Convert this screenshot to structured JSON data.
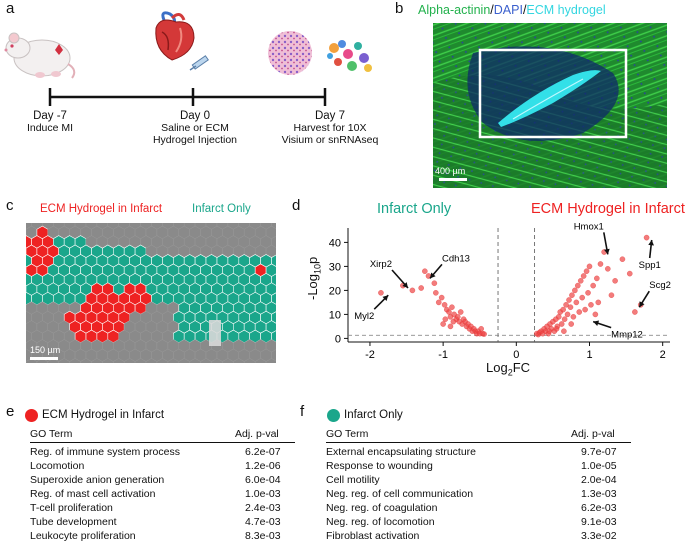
{
  "panel_a": {
    "label": "a",
    "timeline": [
      {
        "day": "Day -7",
        "desc": "Induce MI"
      },
      {
        "day": "Day 0",
        "desc": "Saline or ECM Hydrogel Injection"
      },
      {
        "day": "Day 7",
        "desc": "Harvest for 10X Visium or snRNAseq"
      }
    ]
  },
  "panel_b": {
    "label": "b",
    "title_parts": [
      {
        "text": "Alpha-actinin",
        "color": "#22b14c"
      },
      {
        "text": "/",
        "color": "#111111"
      },
      {
        "text": "DAPI",
        "color": "#3a5fcd"
      },
      {
        "text": "/",
        "color": "#111111"
      },
      {
        "text": "ECM hydrogel",
        "color": "#33d6e0"
      }
    ],
    "scale": "400 µm"
  },
  "panel_c": {
    "label": "c",
    "legend_left": "ECM Hydrogel in Infarct",
    "legend_right": "Infarct Only",
    "scale": "150 µm",
    "colors": {
      "red": "#ee2222",
      "teal": "#1aa68b",
      "gray": "#8a8a8a"
    }
  },
  "panel_d": {
    "label": "d",
    "left_title": "Infarct Only",
    "right_title": "ECM Hydrogel in Infarct",
    "xlabel_base": "Log",
    "xlabel_sub": "2",
    "xlabel_tail": "FC",
    "ylabel_pre": "-Log",
    "ylabel_sub": "10",
    "ylabel_tail": "p",
    "chart_data": {
      "type": "scatter",
      "title": "",
      "x_ticks": [
        "-2",
        "-1",
        "0",
        "1",
        "2"
      ],
      "y_ticks": [
        "0",
        "10",
        "20",
        "30",
        "40"
      ],
      "xlim": [
        -2.3,
        2.1
      ],
      "ylim": [
        -1.5,
        46
      ],
      "thresholds": {
        "x": [
          -0.25,
          0.25
        ],
        "y": 1.3
      },
      "annotations": [
        {
          "gene": "Xirp2",
          "x": -1.48,
          "y": 21
        },
        {
          "gene": "Cdh13",
          "x": -1.18,
          "y": 25
        },
        {
          "gene": "Myl2",
          "x": -1.75,
          "y": 18
        },
        {
          "gene": "Hmox1",
          "x": 1.25,
          "y": 35
        },
        {
          "gene": "Spp1",
          "x": 1.85,
          "y": 41
        },
        {
          "gene": "Scg2",
          "x": 1.68,
          "y": 13
        },
        {
          "gene": "Mmp12",
          "x": 1.05,
          "y": 7
        }
      ],
      "points": [
        [
          -1.85,
          19
        ],
        [
          -1.55,
          22
        ],
        [
          -1.42,
          20
        ],
        [
          -1.3,
          21
        ],
        [
          -1.25,
          28
        ],
        [
          -1.2,
          26
        ],
        [
          -1.12,
          23
        ],
        [
          -1.1,
          19
        ],
        [
          -1.06,
          15
        ],
        [
          -1.02,
          17
        ],
        [
          -0.98,
          14
        ],
        [
          -0.95,
          12
        ],
        [
          -0.92,
          11
        ],
        [
          -0.9,
          9
        ],
        [
          -0.88,
          13
        ],
        [
          -0.85,
          10
        ],
        [
          -0.82,
          8
        ],
        [
          -0.8,
          9
        ],
        [
          -0.78,
          7
        ],
        [
          -0.76,
          11
        ],
        [
          -0.74,
          6
        ],
        [
          -0.72,
          8
        ],
        [
          -0.7,
          7
        ],
        [
          -0.68,
          5
        ],
        [
          -0.66,
          6
        ],
        [
          -0.64,
          4
        ],
        [
          -0.62,
          5
        ],
        [
          -0.6,
          3
        ],
        [
          -0.58,
          4
        ],
        [
          -0.56,
          3
        ],
        [
          -0.54,
          2
        ],
        [
          -0.52,
          3
        ],
        [
          -0.5,
          2
        ],
        [
          -0.48,
          4
        ],
        [
          -0.46,
          2
        ],
        [
          -0.44,
          1.8
        ],
        [
          -1.0,
          6
        ],
        [
          -0.97,
          8
        ],
        [
          -0.9,
          5
        ],
        [
          -0.86,
          7
        ],
        [
          0.28,
          2
        ],
        [
          0.3,
          1.6
        ],
        [
          0.32,
          2.5
        ],
        [
          0.34,
          3
        ],
        [
          0.36,
          2
        ],
        [
          0.38,
          4
        ],
        [
          0.4,
          3
        ],
        [
          0.42,
          5
        ],
        [
          0.44,
          2
        ],
        [
          0.46,
          6
        ],
        [
          0.48,
          4
        ],
        [
          0.5,
          7
        ],
        [
          0.52,
          3
        ],
        [
          0.54,
          8
        ],
        [
          0.56,
          5
        ],
        [
          0.58,
          9
        ],
        [
          0.6,
          11
        ],
        [
          0.62,
          6
        ],
        [
          0.64,
          12
        ],
        [
          0.66,
          8
        ],
        [
          0.68,
          14
        ],
        [
          0.7,
          10
        ],
        [
          0.72,
          16
        ],
        [
          0.74,
          13
        ],
        [
          0.76,
          18
        ],
        [
          0.78,
          9
        ],
        [
          0.8,
          20
        ],
        [
          0.82,
          15
        ],
        [
          0.84,
          22
        ],
        [
          0.86,
          11
        ],
        [
          0.88,
          24
        ],
        [
          0.9,
          17
        ],
        [
          0.92,
          26
        ],
        [
          0.94,
          12
        ],
        [
          0.96,
          28
        ],
        [
          0.98,
          19
        ],
        [
          1.0,
          30
        ],
        [
          1.02,
          14
        ],
        [
          1.05,
          22
        ],
        [
          1.08,
          10
        ],
        [
          1.1,
          25
        ],
        [
          1.12,
          15
        ],
        [
          1.15,
          31
        ],
        [
          1.2,
          36
        ],
        [
          1.25,
          29
        ],
        [
          1.3,
          18
        ],
        [
          1.35,
          24
        ],
        [
          1.45,
          33
        ],
        [
          1.55,
          27
        ],
        [
          1.62,
          11
        ],
        [
          1.7,
          14
        ],
        [
          1.78,
          42
        ],
        [
          0.45,
          3
        ],
        [
          0.55,
          4
        ],
        [
          0.65,
          3
        ],
        [
          0.75,
          6
        ]
      ]
    }
  },
  "panel_e": {
    "label": "e",
    "title": "ECM Hydrogel in Infarct",
    "dot_color": "#ee2222",
    "col_term": "GO Term",
    "col_pval": "Adj. p-val",
    "rows": [
      {
        "term": "Reg. of immune system process",
        "pval": "6.2e-07"
      },
      {
        "term": "Locomotion",
        "pval": "1.2e-06"
      },
      {
        "term": "Superoxide anion generation",
        "pval": "6.0e-04"
      },
      {
        "term": "Reg. of mast cell activation",
        "pval": "1.0e-03"
      },
      {
        "term": "T-cell proliferation",
        "pval": "2.4e-03"
      },
      {
        "term": "Tube development",
        "pval": "4.7e-03"
      },
      {
        "term": "Leukocyte proliferation",
        "pval": "8.3e-03"
      }
    ]
  },
  "panel_f": {
    "label": "f",
    "title": "Infarct Only",
    "dot_color": "#1aa68b",
    "col_term": "GO Term",
    "col_pval": "Adj. p-val",
    "rows": [
      {
        "term": "External encapsulating structure",
        "pval": "9.7e-07"
      },
      {
        "term": "Response to wounding",
        "pval": "1.0e-05"
      },
      {
        "term": "Cell motility",
        "pval": "2.0e-04"
      },
      {
        "term": "Neg. reg. of cell communication",
        "pval": "1.3e-03"
      },
      {
        "term": "Neg. reg. of coagulation",
        "pval": "6.2e-03"
      },
      {
        "term": "Neg. reg. of locomotion",
        "pval": "9.1e-03"
      },
      {
        "term": "Fibroblast activation",
        "pval": "3.3e-02"
      }
    ]
  }
}
